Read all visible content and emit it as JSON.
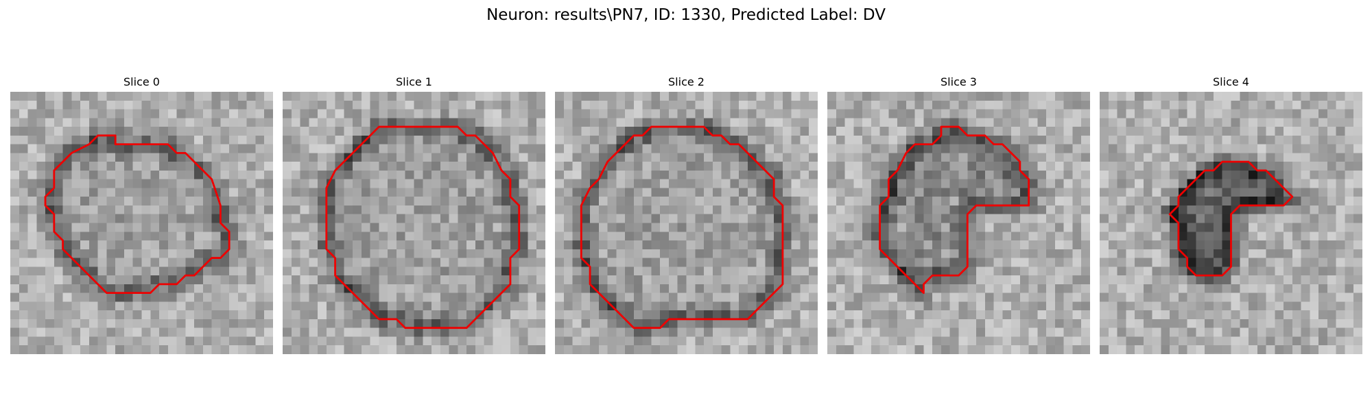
{
  "figure": {
    "title": "Neuron: results\\PN7, ID: 1330, Predicted Label: DV"
  },
  "panels": [
    {
      "title": "Slice 0",
      "seed": 11,
      "contour": [
        [
          12,
          6
        ],
        [
          18,
          6
        ],
        [
          19,
          7
        ],
        [
          20,
          7
        ],
        [
          22,
          9
        ],
        [
          23,
          10
        ],
        [
          24,
          13
        ],
        [
          24,
          15
        ],
        [
          25,
          16
        ],
        [
          25,
          18
        ],
        [
          24,
          19
        ],
        [
          23,
          19
        ],
        [
          22,
          20
        ],
        [
          21,
          21
        ],
        [
          20,
          21
        ],
        [
          19,
          22
        ],
        [
          17,
          22
        ],
        [
          16,
          23
        ],
        [
          11,
          23
        ],
        [
          10,
          22
        ],
        [
          9,
          21
        ],
        [
          8,
          20
        ],
        [
          6,
          18
        ],
        [
          6,
          17
        ],
        [
          5,
          16
        ],
        [
          5,
          14
        ],
        [
          4,
          13
        ],
        [
          4,
          12
        ],
        [
          5,
          11
        ],
        [
          5,
          9
        ],
        [
          7,
          7
        ],
        [
          9,
          6
        ],
        [
          10,
          5
        ],
        [
          12,
          5
        ]
      ]
    },
    {
      "title": "Slice 1",
      "seed": 23,
      "contour": [
        [
          11,
          4
        ],
        [
          20,
          4
        ],
        [
          21,
          5
        ],
        [
          22,
          5
        ],
        [
          24,
          7
        ],
        [
          25,
          9
        ],
        [
          26,
          10
        ],
        [
          26,
          12
        ],
        [
          27,
          13
        ],
        [
          27,
          18
        ],
        [
          26,
          19
        ],
        [
          26,
          22
        ],
        [
          25,
          23
        ],
        [
          24,
          24
        ],
        [
          23,
          25
        ],
        [
          22,
          26
        ],
        [
          21,
          27
        ],
        [
          14,
          27
        ],
        [
          13,
          26
        ],
        [
          11,
          26
        ],
        [
          10,
          25
        ],
        [
          9,
          24
        ],
        [
          8,
          23
        ],
        [
          7,
          22
        ],
        [
          6,
          21
        ],
        [
          6,
          19
        ],
        [
          5,
          18
        ],
        [
          5,
          11
        ],
        [
          6,
          9
        ],
        [
          7,
          8
        ],
        [
          8,
          7
        ],
        [
          9,
          6
        ],
        [
          10,
          5
        ]
      ]
    },
    {
      "title": "Slice 2",
      "seed": 37,
      "contour": [
        [
          11,
          4
        ],
        [
          17,
          4
        ],
        [
          18,
          5
        ],
        [
          19,
          5
        ],
        [
          20,
          6
        ],
        [
          21,
          6
        ],
        [
          23,
          8
        ],
        [
          24,
          9
        ],
        [
          25,
          10
        ],
        [
          25,
          12
        ],
        [
          26,
          13
        ],
        [
          26,
          22
        ],
        [
          25,
          23
        ],
        [
          24,
          24
        ],
        [
          23,
          25
        ],
        [
          22,
          26
        ],
        [
          13,
          26
        ],
        [
          12,
          27
        ],
        [
          9,
          27
        ],
        [
          8,
          26
        ],
        [
          7,
          25
        ],
        [
          6,
          24
        ],
        [
          5,
          23
        ],
        [
          4,
          22
        ],
        [
          4,
          20
        ],
        [
          3,
          19
        ],
        [
          3,
          13
        ],
        [
          4,
          11
        ],
        [
          5,
          10
        ],
        [
          6,
          8
        ],
        [
          7,
          7
        ],
        [
          8,
          6
        ],
        [
          9,
          5
        ],
        [
          10,
          5
        ]
      ]
    },
    {
      "title": "Slice 3",
      "seed": 49,
      "contour": [
        [
          13,
          4
        ],
        [
          15,
          4
        ],
        [
          16,
          5
        ],
        [
          18,
          5
        ],
        [
          19,
          6
        ],
        [
          20,
          6
        ],
        [
          21,
          7
        ],
        [
          22,
          8
        ],
        [
          22,
          9
        ],
        [
          23,
          10
        ],
        [
          23,
          13
        ],
        [
          20,
          13
        ],
        [
          18,
          13
        ],
        [
          17,
          13
        ],
        [
          16,
          14
        ],
        [
          16,
          16
        ],
        [
          16,
          20
        ],
        [
          15,
          21
        ],
        [
          12,
          21
        ],
        [
          11,
          22
        ],
        [
          11,
          23
        ],
        [
          10,
          22
        ],
        [
          9,
          21
        ],
        [
          8,
          20
        ],
        [
          7,
          19
        ],
        [
          6,
          18
        ],
        [
          6,
          13
        ],
        [
          7,
          12
        ],
        [
          7,
          10
        ],
        [
          8,
          9
        ],
        [
          9,
          7
        ],
        [
          10,
          6
        ],
        [
          12,
          6
        ],
        [
          13,
          5
        ]
      ]
    },
    {
      "title": "Slice 4",
      "seed": 61,
      "contour": [
        [
          14,
          8
        ],
        [
          17,
          8
        ],
        [
          18,
          9
        ],
        [
          19,
          9
        ],
        [
          20,
          10
        ],
        [
          21,
          11
        ],
        [
          22,
          12
        ],
        [
          21,
          13
        ],
        [
          17,
          13
        ],
        [
          16,
          13
        ],
        [
          15,
          14
        ],
        [
          15,
          20
        ],
        [
          14,
          21
        ],
        [
          11,
          21
        ],
        [
          10,
          20
        ],
        [
          10,
          19
        ],
        [
          9,
          18
        ],
        [
          9,
          16
        ],
        [
          9,
          15
        ],
        [
          8,
          14
        ],
        [
          9,
          13
        ],
        [
          9,
          12
        ],
        [
          10,
          11
        ],
        [
          11,
          10
        ],
        [
          12,
          9
        ],
        [
          13,
          9
        ]
      ]
    }
  ],
  "colors": {
    "contour": "#ee0000"
  }
}
